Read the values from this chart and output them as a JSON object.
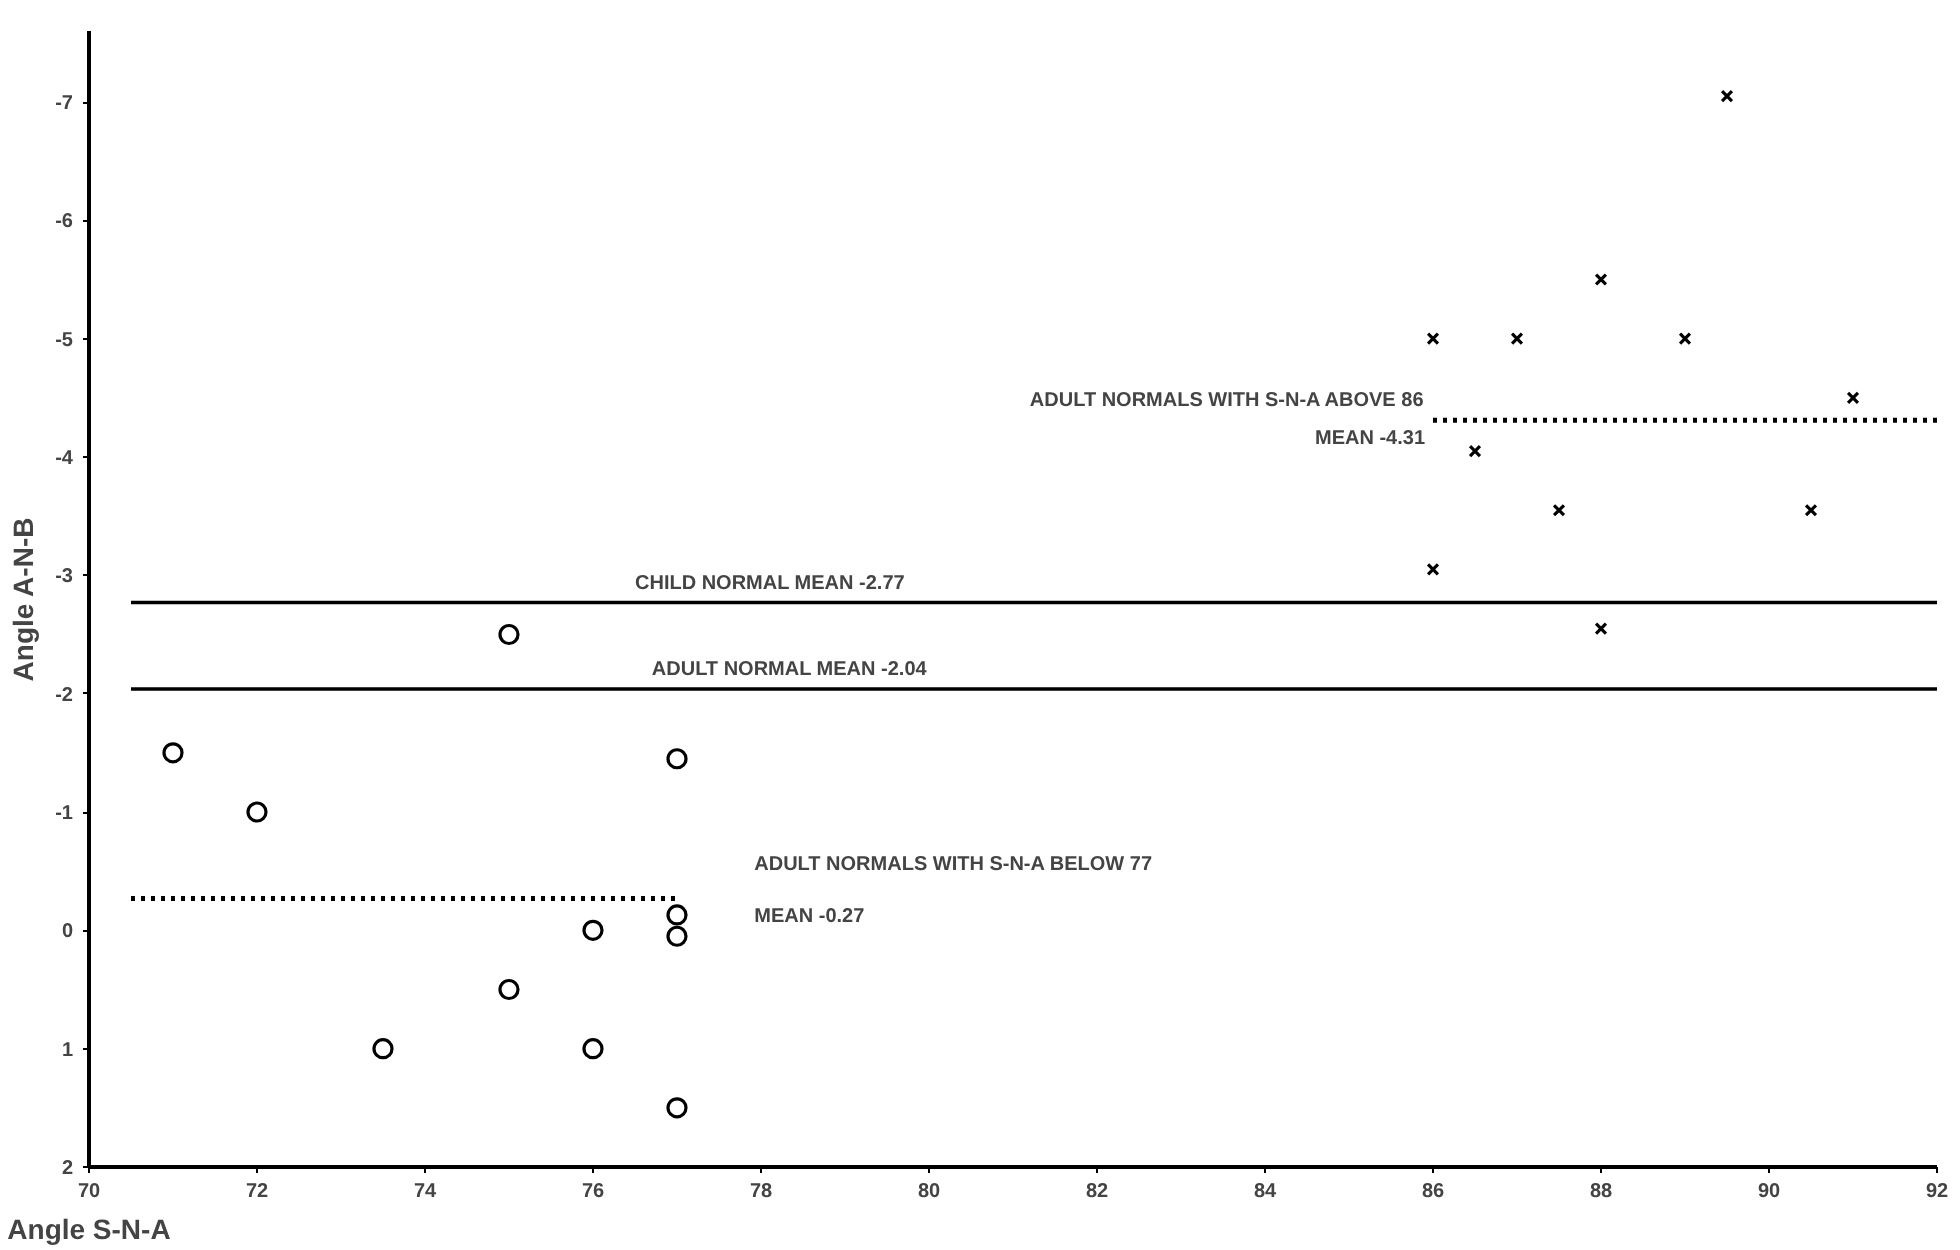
{
  "chart_data": {
    "type": "scatter",
    "xlabel": "Angle S-N-A",
    "ylabel": "Angle A-N-B",
    "xlim": [
      70,
      92
    ],
    "ylim": [
      2,
      -7.6
    ],
    "xticks": [
      70,
      72,
      74,
      76,
      78,
      80,
      82,
      84,
      86,
      88,
      90,
      92
    ],
    "yticks": [
      -7,
      -6,
      -5,
      -4,
      -3,
      -2,
      -1,
      0,
      1,
      2
    ],
    "grid": false,
    "series": [
      {
        "marker": "circle",
        "color": "#000000",
        "x": [
          71,
          72,
          75,
          77,
          77,
          77,
          76,
          75,
          73.5,
          76,
          77
        ],
        "values": [
          -1.5,
          -1.0,
          -2.5,
          -1.45,
          -0.13,
          0.05,
          0,
          0.5,
          1.0,
          1.0,
          1.5
        ]
      },
      {
        "marker": "cross",
        "color": "#000000",
        "x": [
          86,
          87,
          88,
          89,
          89.5,
          91,
          86.5,
          87.5,
          90.5,
          86,
          88
        ],
        "values": [
          -5.0,
          -5.0,
          -5.5,
          -5.0,
          -7.05,
          -4.5,
          -4.05,
          -3.55,
          -3.55,
          -3.05,
          -2.55
        ]
      },
      {
        "type": "line",
        "line_style": "solid",
        "color": "#000000",
        "x": [
          70.5,
          92
        ],
        "values": [
          -2.77,
          -2.77
        ]
      },
      {
        "type": "line",
        "line_style": "solid",
        "color": "#000000",
        "x": [
          70.5,
          92
        ],
        "values": [
          -2.04,
          -2.04
        ]
      },
      {
        "type": "line",
        "line_style": "dotted",
        "color": "#000000",
        "x": [
          86,
          92
        ],
        "values": [
          -4.31,
          -4.31
        ]
      },
      {
        "type": "line",
        "line_style": "dotted",
        "color": "#000000",
        "x": [
          70.5,
          77
        ],
        "values": [
          -0.27,
          -0.27
        ]
      }
    ],
    "annotations": [
      {
        "text": "ADULT NORMALS WITH S-N-A ABOVE 86",
        "x": 86,
        "y": -4.31
      },
      {
        "text": "MEAN -4.31",
        "x": 86,
        "y": -4.31
      },
      {
        "text": "CHILD NORMAL MEAN -2.77",
        "x": 76.5,
        "y": -2.77
      },
      {
        "text": "ADULT NORMAL MEAN -2.04",
        "x": 76.7,
        "y": -2.04
      },
      "ADULT NORMALS WITH S-N-A BELOW 77",
      "MEAN -0.27"
    ]
  }
}
